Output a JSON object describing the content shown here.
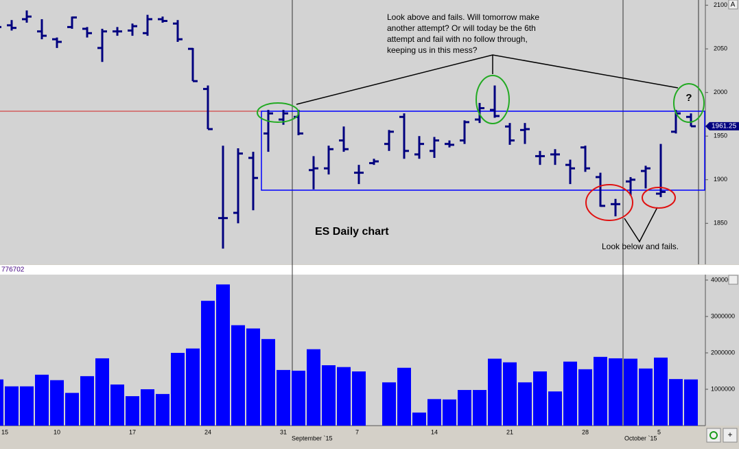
{
  "chart_data": [
    {
      "type": "ohlc",
      "color": "#00007f",
      "open": [
        2079,
        2077,
        2084,
        2070,
        2061,
        2075,
        2073,
        2051,
        2070,
        2071,
        2068,
        2084,
        2079,
        2050,
        2004,
        1856,
        1862,
        1925,
        1953,
        1969,
        1972,
        1911,
        1913,
        1945,
        1908,
        1919,
        1941,
        1972,
        1929,
        1933,
        1941,
        1945,
        1969,
        1980,
        1961,
        1957,
        1927,
        1929,
        1917,
        1937,
        1903,
        1872,
        1898,
        1910,
        1884,
        1955,
        1972
      ],
      "high": [
        2081,
        2083,
        2094,
        2084,
        2063,
        2087,
        2075,
        2073,
        2075,
        2079,
        2089,
        2087,
        2083,
        2051,
        2008,
        1939,
        1936,
        1932,
        1980,
        1980,
        1980,
        1927,
        1939,
        1961,
        1917,
        1924,
        1957,
        1976,
        1950,
        1949,
        1945,
        1968,
        1988,
        2008,
        1965,
        1965,
        1933,
        1935,
        1923,
        1939,
        1908,
        1878,
        1903,
        1916,
        1941,
        1980,
        1976
      ],
      "low": [
        2073,
        2071,
        2080,
        2061,
        2051,
        2073,
        2063,
        2035,
        2065,
        2065,
        2065,
        2080,
        2058,
        2013,
        1958,
        1821,
        1850,
        1865,
        1932,
        1963,
        1951,
        1889,
        1906,
        1932,
        1895,
        1917,
        1933,
        1924,
        1924,
        1925,
        1937,
        1941,
        1965,
        1971,
        1940,
        1941,
        1917,
        1917,
        1895,
        1909,
        1869,
        1858,
        1882,
        1890,
        1880,
        1953,
        1961
      ],
      "close": [
        2075,
        2074,
        2087,
        2065,
        2058,
        2086,
        2068,
        2070,
        2070,
        2076,
        2084,
        2082,
        2061,
        2013,
        1958,
        1856,
        1930,
        1902,
        1976,
        1976,
        1953,
        1913,
        1935,
        1935,
        1908,
        1921,
        1955,
        1933,
        1941,
        1945,
        1940,
        1966,
        1982,
        1973,
        1945,
        1958,
        1927,
        1929,
        1913,
        1913,
        1870,
        1872,
        1900,
        1913,
        1886,
        1976,
        1961.25
      ],
      "last_price": 1961.25,
      "ylim": [
        1803,
        2106
      ],
      "yticks": [
        2100,
        2050,
        2000,
        1950,
        1900,
        1850
      ]
    },
    {
      "type": "bar",
      "color": "#0000ff",
      "label": "776702",
      "categories": [
        "15",
        null,
        null,
        null,
        "10",
        null,
        null,
        null,
        null,
        "17",
        null,
        null,
        null,
        null,
        "24",
        null,
        null,
        null,
        null,
        "31",
        null,
        null,
        null,
        null,
        "7",
        null,
        null,
        null,
        null,
        "14",
        null,
        null,
        null,
        null,
        "21",
        null,
        null,
        null,
        null,
        "28",
        null,
        null,
        null,
        null,
        "5",
        null,
        null
      ],
      "values": [
        1270000,
        1080000,
        1080000,
        1400000,
        1250000,
        900000,
        1360000,
        1850000,
        1130000,
        810000,
        1000000,
        870000,
        2000000,
        2120000,
        3430000,
        3880000,
        2760000,
        2670000,
        2380000,
        1530000,
        1510000,
        2100000,
        1660000,
        1610000,
        1490000,
        null,
        1190000,
        1590000,
        360000,
        730000,
        720000,
        980000,
        980000,
        1840000,
        1740000,
        1190000,
        1490000,
        940000,
        1760000,
        1550000,
        1890000,
        1850000,
        1840000,
        1570000,
        1870000,
        1280000,
        1270000
      ],
      "ylim": [
        0,
        4150000
      ],
      "yticks": [
        4000000,
        3000000,
        2000000,
        1000000
      ]
    }
  ],
  "month_labels": [
    "September `15",
    "October `15"
  ],
  "annotations": {
    "top_note": [
      "Look above and fails.  Will tomorrow make",
      "another attempt? Or will today be the 6th",
      "attempt and fail with no follow through,",
      "keeping us in this mess?"
    ],
    "title": "ES Daily chart",
    "question": "?",
    "bottom_note": "Look below and fails."
  },
  "buttons": [
    "A",
    "+"
  ]
}
